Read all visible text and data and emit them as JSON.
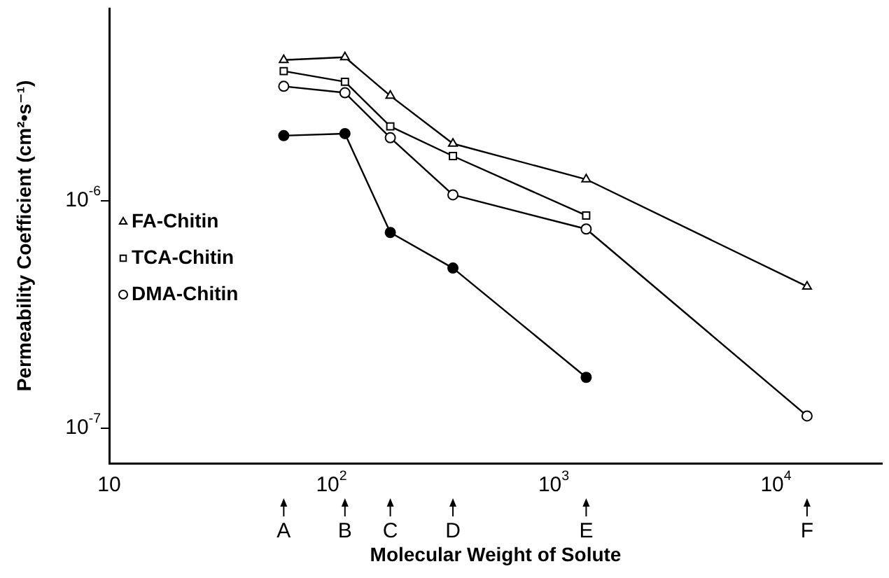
{
  "chart_data": {
    "type": "line",
    "xlabel": "Molecular Weight of Solute",
    "ylabel": "Permeability Coefficient (cm²•s⁻¹)",
    "log": "xy",
    "xlim": [
      10,
      30000
    ],
    "ylim": [
      7e-08,
      7e-06
    ],
    "xticks": [
      {
        "value": 10,
        "label": "10"
      },
      {
        "value": 100,
        "label": "10$^{2}$"
      },
      {
        "value": 1000,
        "label": "10$^{3}$"
      },
      {
        "value": 10000,
        "label": "10$^{4}$"
      }
    ],
    "yticks": [
      {
        "value": 1e-07,
        "label": "10$^{-7}$"
      },
      {
        "value": 1e-06,
        "label": "10$^{-6}$"
      }
    ],
    "x": [
      61,
      115,
      184,
      352,
      1400,
      13800
    ],
    "series": [
      {
        "name": "FA-Chitin",
        "color": "#000000",
        "marker": "triangle",
        "values": [
          4.15e-06,
          4.27e-06,
          2.89e-06,
          1.78e-06,
          1.24e-06,
          4.19e-07
        ]
      },
      {
        "name": "TCA-Chitin",
        "color": "#000000",
        "marker": "square",
        "values": [
          3.71e-06,
          3.33e-06,
          2.12e-06,
          1.57e-06,
          8.6e-07,
          null
        ]
      },
      {
        "name": "DMA-Chitin",
        "color": "#000000",
        "marker": "circle",
        "values": [
          3.18e-06,
          2.98e-06,
          1.89e-06,
          1.06e-06,
          7.5e-07,
          1.13e-07
        ]
      },
      {
        "color": "#000000",
        "marker": "circle",
        "values": [
          1.93e-06,
          1.97e-06,
          7.24e-07,
          5.05e-07,
          1.67e-07,
          null
        ]
      }
    ],
    "annotations": [
      {
        "text": "A",
        "x": 61
      },
      {
        "text": "B",
        "x": 115
      },
      {
        "text": "C",
        "x": 184
      },
      {
        "text": "D",
        "x": 352
      },
      {
        "text": "E",
        "x": 1400
      },
      {
        "text": "F",
        "x": 13800
      }
    ],
    "legend": "left",
    "grid": false,
    "line_style": "solid"
  }
}
